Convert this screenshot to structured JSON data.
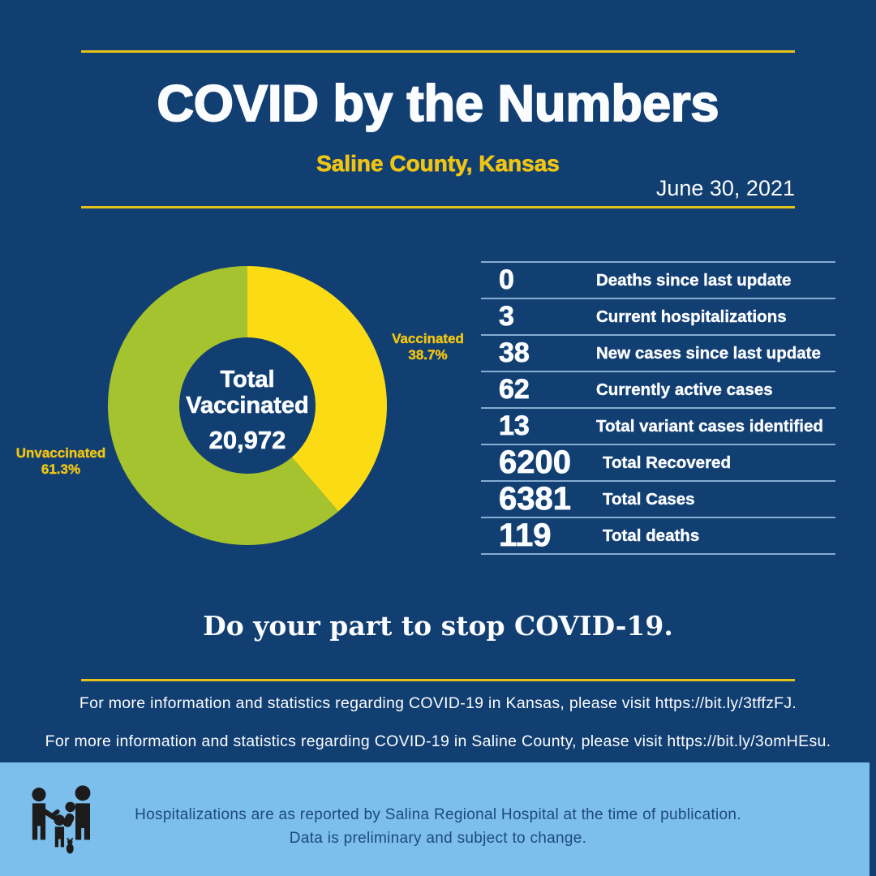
{
  "colors": {
    "background": "#123f72",
    "gold_line": "#e3c319",
    "accent_yellow": "#f0c413",
    "white": "#fafcfe",
    "divider_blue": "#86add3",
    "footer_bg": "#7cbeec",
    "footer_text": "#1d4a7d",
    "icon_black": "#1c1c1c"
  },
  "header": {
    "title": "COVID by the Numbers",
    "subtitle": "Saline County, Kansas",
    "date": "June 30, 2021"
  },
  "chart_data": {
    "type": "pie",
    "donut": true,
    "start_angle": "12 o'clock, clockwise",
    "center_label": "Total Vaccinated",
    "center_value": "20,972",
    "slices": [
      {
        "label": "Vaccinated",
        "value": 38.7,
        "pct_label": "38.7%",
        "color": "#fbdb14"
      },
      {
        "label": "Unvaccinated",
        "value": 61.3,
        "pct_label": "61.3%",
        "color": "#a5c22f"
      }
    ]
  },
  "stats": {
    "rows": [
      {
        "value": "0",
        "label": "Deaths since last update"
      },
      {
        "value": "3",
        "label": "Current hospitalizations"
      },
      {
        "value": "38",
        "label": "New cases since last update"
      },
      {
        "value": "62",
        "label": "Currently active cases"
      },
      {
        "value": "13",
        "label": "Total variant cases identified"
      },
      {
        "value": "6200",
        "label": "Total Recovered"
      },
      {
        "value": "6381",
        "label": "Total Cases"
      },
      {
        "value": "119",
        "label": "Total deaths"
      }
    ]
  },
  "tagline": "Do your part to stop COVID-19.",
  "info": {
    "kansas": "For more information and statistics regarding COVID-19 in Kansas, please visit https://bit.ly/3tffzFJ.",
    "saline": "For more information and statistics regarding COVID-19 in Saline County, please visit  https://bit.ly/3omHEsu."
  },
  "footer": {
    "line1": "Hospitalizations are as reported by Salina Regional Hospital at the time of publication.",
    "line2": "Data is preliminary and subject to change."
  }
}
